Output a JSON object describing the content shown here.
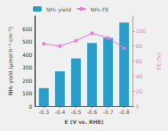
{
  "chart_data": {
    "type": "bar",
    "x": [
      -0.3,
      -0.4,
      -0.5,
      -0.6,
      -0.7,
      -0.8
    ],
    "xlim": [
      -0.245,
      -0.855
    ],
    "xticks": [
      -0.3,
      -0.4,
      -0.5,
      -0.6,
      -0.7,
      -0.8
    ],
    "xlabel": "E (V vs. RHE)",
    "ylabel": "NH₃ yield (μmol h⁻¹ cm⁻²)",
    "ylim": [
      0,
      700
    ],
    "yticks": [
      0,
      100,
      200,
      300,
      400,
      500,
      600
    ],
    "y2label": "FE (%)",
    "y2lim": [
      0,
      120
    ],
    "y2ticks": [
      0,
      20,
      40,
      60,
      80,
      100
    ],
    "grid": false,
    "legend": "upper left",
    "series": [
      {
        "name": "NH₃ yield",
        "type": "bar",
        "color": "#2b9dc9",
        "values": [
          140,
          270,
          370,
          490,
          530,
          650
        ]
      },
      {
        "name": "NH₃ FE",
        "type": "line",
        "axis": "y2",
        "marker": "circle",
        "color": "#e87ad0",
        "values": [
          83,
          80,
          87,
          97,
          91,
          77
        ]
      }
    ]
  }
}
